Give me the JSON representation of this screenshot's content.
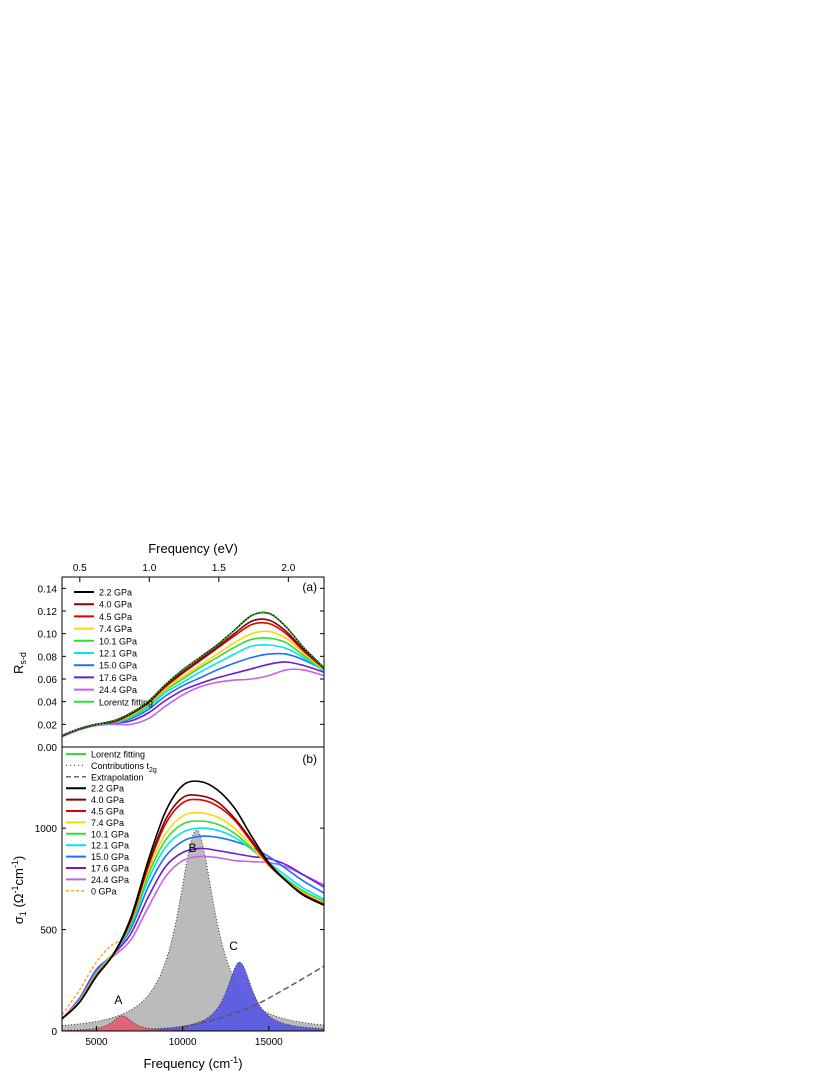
{
  "chart_data": [
    {
      "type": "line",
      "panel_label": "(a)",
      "xlabel_top": "Frequency (eV)",
      "ylabel": "R",
      "ylabel_sub": "s-d",
      "x_top_ticks": [
        "0.5",
        "1.0",
        "1.5",
        "2.0"
      ],
      "x_top_tick_values_eV": [
        0.5,
        1.0,
        1.5,
        2.0
      ],
      "xlim_cm": [
        3000,
        18200
      ],
      "ylim": [
        0.0,
        0.15
      ],
      "y_ticks": [
        "0.00",
        "0.02",
        "0.04",
        "0.06",
        "0.08",
        "0.10",
        "0.12",
        "0.14"
      ],
      "y_tick_values": [
        0.0,
        0.02,
        0.04,
        0.06,
        0.08,
        0.1,
        0.12,
        0.14
      ],
      "x": [
        3000,
        4000,
        5000,
        6000,
        7000,
        8000,
        9000,
        10000,
        11000,
        12000,
        13000,
        14000,
        15000,
        16000,
        17000,
        18200
      ],
      "series": [
        {
          "name": "2.2 GPa",
          "color": "#000000",
          "values": [
            0.01,
            0.016,
            0.02,
            0.023,
            0.03,
            0.04,
            0.055,
            0.068,
            0.079,
            0.09,
            0.103,
            0.116,
            0.118,
            0.106,
            0.088,
            0.07
          ]
        },
        {
          "name": "4.0 GPa",
          "color": "#8b0000",
          "values": [
            0.01,
            0.016,
            0.02,
            0.023,
            0.029,
            0.039,
            0.054,
            0.066,
            0.077,
            0.088,
            0.1,
            0.111,
            0.112,
            0.102,
            0.086,
            0.07
          ]
        },
        {
          "name": "4.5 GPa",
          "color": "#e00000",
          "values": [
            0.01,
            0.016,
            0.02,
            0.022,
            0.029,
            0.039,
            0.053,
            0.065,
            0.076,
            0.087,
            0.098,
            0.108,
            0.109,
            0.1,
            0.085,
            0.069
          ]
        },
        {
          "name": "7.4 GPa",
          "color": "#ffd700",
          "values": [
            0.01,
            0.016,
            0.02,
            0.022,
            0.028,
            0.038,
            0.051,
            0.062,
            0.072,
            0.082,
            0.092,
            0.1,
            0.102,
            0.096,
            0.083,
            0.068
          ]
        },
        {
          "name": "10.1 GPa",
          "color": "#33dd33",
          "values": [
            0.01,
            0.016,
            0.02,
            0.022,
            0.027,
            0.037,
            0.05,
            0.06,
            0.07,
            0.079,
            0.088,
            0.095,
            0.096,
            0.092,
            0.081,
            0.068
          ]
        },
        {
          "name": "12.1 GPa",
          "color": "#00e5ee",
          "values": [
            0.01,
            0.016,
            0.02,
            0.021,
            0.026,
            0.035,
            0.048,
            0.057,
            0.066,
            0.074,
            0.082,
            0.089,
            0.09,
            0.087,
            0.079,
            0.067
          ]
        },
        {
          "name": "15.0 GPa",
          "color": "#1e6fff",
          "values": [
            0.01,
            0.016,
            0.02,
            0.021,
            0.025,
            0.033,
            0.045,
            0.054,
            0.061,
            0.068,
            0.074,
            0.079,
            0.082,
            0.082,
            0.077,
            0.068
          ]
        },
        {
          "name": "17.6 GPa",
          "color": "#6a1bd6",
          "values": [
            0.01,
            0.016,
            0.02,
            0.021,
            0.023,
            0.03,
            0.041,
            0.05,
            0.056,
            0.061,
            0.065,
            0.069,
            0.073,
            0.075,
            0.072,
            0.066
          ]
        },
        {
          "name": "24.4 GPa",
          "color": "#c561f0",
          "values": [
            0.009,
            0.015,
            0.019,
            0.02,
            0.02,
            0.025,
            0.036,
            0.046,
            0.053,
            0.057,
            0.059,
            0.06,
            0.063,
            0.068,
            0.068,
            0.063
          ]
        },
        {
          "name": "Lorentz fitting",
          "color": "#33dd33",
          "values": [
            0.01,
            0.016,
            0.02,
            0.023,
            0.03,
            0.04,
            0.055,
            0.068,
            0.079,
            0.09,
            0.103,
            0.116,
            0.118,
            0.106,
            0.088,
            0.07
          ]
        }
      ]
    },
    {
      "type": "line",
      "panel_label": "(b)",
      "xlabel": "Frequency (cm",
      "xlabel_sup": "-1",
      "xlabel_end": ")",
      "ylabel_parts": [
        "σ",
        "1",
        " (Ω",
        "-1",
        "cm",
        "-1",
        ")"
      ],
      "xlim": [
        3000,
        18200
      ],
      "ylim": [
        0,
        1400
      ],
      "x_ticks": [
        "5000",
        "10000",
        "15000"
      ],
      "x_tick_values": [
        5000,
        10000,
        15000
      ],
      "y_ticks": [
        "0",
        "500",
        "1000"
      ],
      "y_tick_values": [
        0,
        500,
        1000
      ],
      "legend_entries": [
        "Lorentz fitting",
        "Contributions t",
        "Extrapolation",
        "2.2 GPa",
        "4.0 GPa",
        "4.5 GPa",
        "7.4 GPa",
        "10.1 GPa",
        "12.1 GPa",
        "15.0 GPa",
        "17.6 GPa",
        "24.4 GPa",
        "0 GPa"
      ],
      "legend_sub": "2g",
      "x": [
        3000,
        4000,
        5000,
        6000,
        7000,
        8000,
        9000,
        10000,
        11000,
        12000,
        13000,
        14000,
        15000,
        16000,
        17000,
        18200
      ],
      "series": [
        {
          "name": "2.2 GPa",
          "color": "#000000",
          "values": [
            60,
            140,
            270,
            380,
            560,
            840,
            1080,
            1210,
            1230,
            1190,
            1100,
            960,
            830,
            740,
            670,
            620
          ]
        },
        {
          "name": "4.0 GPa",
          "color": "#8b0000",
          "values": [
            60,
            140,
            270,
            380,
            550,
            820,
            1040,
            1150,
            1160,
            1130,
            1050,
            940,
            820,
            740,
            670,
            620
          ]
        },
        {
          "name": "4.5 GPa",
          "color": "#e00000",
          "values": [
            60,
            140,
            275,
            380,
            545,
            810,
            1020,
            1125,
            1140,
            1110,
            1040,
            930,
            820,
            740,
            675,
            625
          ]
        },
        {
          "name": "7.4 GPa",
          "color": "#ffd700",
          "values": [
            60,
            145,
            280,
            385,
            540,
            790,
            970,
            1060,
            1075,
            1055,
            1000,
            910,
            815,
            740,
            680,
            630
          ]
        },
        {
          "name": "10.1 GPa",
          "color": "#33dd33",
          "values": [
            60,
            145,
            285,
            385,
            530,
            770,
            940,
            1020,
            1035,
            1020,
            975,
            900,
            820,
            750,
            690,
            640
          ]
        },
        {
          "name": "12.1 GPa",
          "color": "#00e5ee",
          "values": [
            60,
            150,
            290,
            385,
            520,
            745,
            905,
            980,
            1000,
            990,
            955,
            895,
            830,
            765,
            705,
            650
          ]
        },
        {
          "name": "15.0 GPa",
          "color": "#1e6fff",
          "values": [
            60,
            150,
            295,
            385,
            505,
            710,
            860,
            935,
            960,
            955,
            935,
            905,
            860,
            800,
            740,
            680
          ]
        },
        {
          "name": "17.6 GPa",
          "color": "#6a1bd6",
          "values": [
            60,
            155,
            300,
            380,
            480,
            660,
            810,
            880,
            900,
            890,
            875,
            860,
            850,
            820,
            770,
            710
          ]
        },
        {
          "name": "24.4 GPa",
          "color": "#c561f0",
          "values": [
            60,
            160,
            305,
            370,
            450,
            610,
            760,
            840,
            860,
            855,
            840,
            835,
            830,
            810,
            770,
            720
          ]
        },
        {
          "name": "Lorentz fitting",
          "color": "#33dd33",
          "values": [
            60,
            140,
            270,
            380,
            560,
            840,
            1080,
            1210,
            1230,
            1190,
            1100,
            960,
            830,
            740,
            670,
            620
          ]
        },
        {
          "name": "0 GPa",
          "color": "#f5a623",
          "dashed": true,
          "x": [
            3000,
            4000,
            5000,
            6000,
            7000
          ],
          "values": [
            80,
            200,
            340,
            430,
            450
          ]
        },
        {
          "name": "Extrapolation",
          "color": "#555555",
          "dashed": true,
          "x": [
            10000,
            12000,
            14000,
            16000,
            18200
          ],
          "values": [
            20,
            60,
            120,
            210,
            320
          ]
        }
      ],
      "contributions": [
        {
          "label": "A",
          "center": 6500,
          "peak": 75,
          "width": 1400,
          "fill": "#e06070"
        },
        {
          "label": "B",
          "center": 10800,
          "peak": 990,
          "width": 2600,
          "fill": "#bbbbbb"
        },
        {
          "label": "C",
          "center": 13300,
          "peak": 340,
          "width": 1800,
          "fill": "#5a5ae0"
        }
      ]
    }
  ]
}
